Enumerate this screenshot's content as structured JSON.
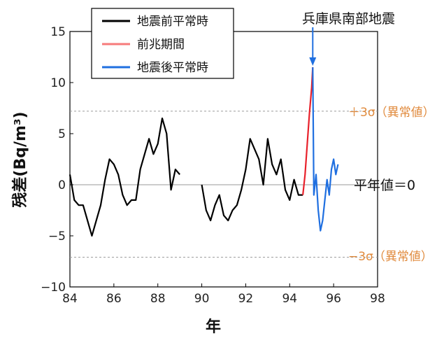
{
  "chart_data": {
    "type": "line",
    "ylabel": "残差(Bq/m³)",
    "xlabel": "年",
    "xlim": [
      84,
      98
    ],
    "ylim": [
      -10,
      15
    ],
    "x_ticks": [
      "84",
      "86",
      "88",
      "90",
      "92",
      "94",
      "96",
      "98"
    ],
    "y_ticks": [
      "15",
      "10",
      "5",
      "0",
      "−5",
      "−10"
    ],
    "x_tick_values": [
      84,
      86,
      88,
      90,
      92,
      94,
      96,
      98
    ],
    "y_tick_values": [
      15,
      10,
      5,
      0,
      -5,
      -10
    ],
    "reference_lines": [
      {
        "label": "＋3σ（異常値）",
        "y": 7.2
      },
      {
        "label": "平年値＝0",
        "y": 0
      },
      {
        "label": "−3σ（異常値）",
        "y": -7.1
      }
    ],
    "event_annotation": {
      "label": "兵庫県南部地震",
      "x": 95.05
    },
    "legend_position": "top-left",
    "grid": false,
    "series": [
      {
        "name": "地震前平常時",
        "color": "#000000",
        "x": [
          84.0,
          84.2,
          84.4,
          84.6,
          84.8,
          85.0,
          85.2,
          85.4,
          85.6,
          85.8,
          86.0,
          86.2,
          86.4,
          86.6,
          86.8,
          87.0,
          87.2,
          87.4,
          87.6,
          87.8,
          88.0,
          88.2,
          88.4,
          88.6,
          88.8,
          89.0
        ],
        "y": [
          1.0,
          -1.5,
          -2.0,
          -2.0,
          -3.5,
          -5.0,
          -3.5,
          -2.0,
          0.5,
          2.5,
          2.0,
          1.0,
          -1.0,
          -2.0,
          -1.5,
          -1.5,
          1.5,
          3.0,
          4.5,
          3.0,
          4.0,
          6.5,
          5.0,
          -0.5,
          1.5,
          1.0
        ],
        "segments": [
          {
            "x": [
              90.0,
              90.2,
              90.4,
              90.6,
              90.8,
              91.0,
              91.2,
              91.4,
              91.6,
              91.8,
              92.0,
              92.2,
              92.4,
              92.6,
              92.8,
              93.0,
              93.2,
              93.4,
              93.6,
              93.8,
              94.0,
              94.2,
              94.4,
              94.6
            ],
            "y": [
              0.0,
              -2.5,
              -3.5,
              -2.0,
              -1.0,
              -3.0,
              -3.5,
              -2.5,
              -2.0,
              -0.5,
              1.5,
              4.5,
              3.5,
              2.5,
              0.0,
              4.5,
              2.0,
              1.0,
              2.5,
              -0.5,
              -1.5,
              0.5,
              -1.0,
              -1.0
            ]
          }
        ]
      },
      {
        "name": "前兆期間",
        "color": "#e8212b",
        "x": [
          94.6,
          94.7,
          94.8,
          94.9,
          95.0,
          95.05
        ],
        "y": [
          -1.0,
          1.0,
          4.0,
          7.0,
          9.5,
          11.5
        ]
      },
      {
        "name": "地震後平常時",
        "color": "#1f6fe0",
        "x": [
          95.05,
          95.1,
          95.2,
          95.3,
          95.4,
          95.5,
          95.6,
          95.7,
          95.8,
          95.9,
          96.0,
          96.1,
          96.2
        ],
        "y": [
          11.5,
          -1.0,
          1.0,
          -2.5,
          -4.5,
          -3.5,
          -1.5,
          0.5,
          -1.0,
          1.5,
          2.5,
          1.0,
          2.0
        ]
      }
    ]
  }
}
